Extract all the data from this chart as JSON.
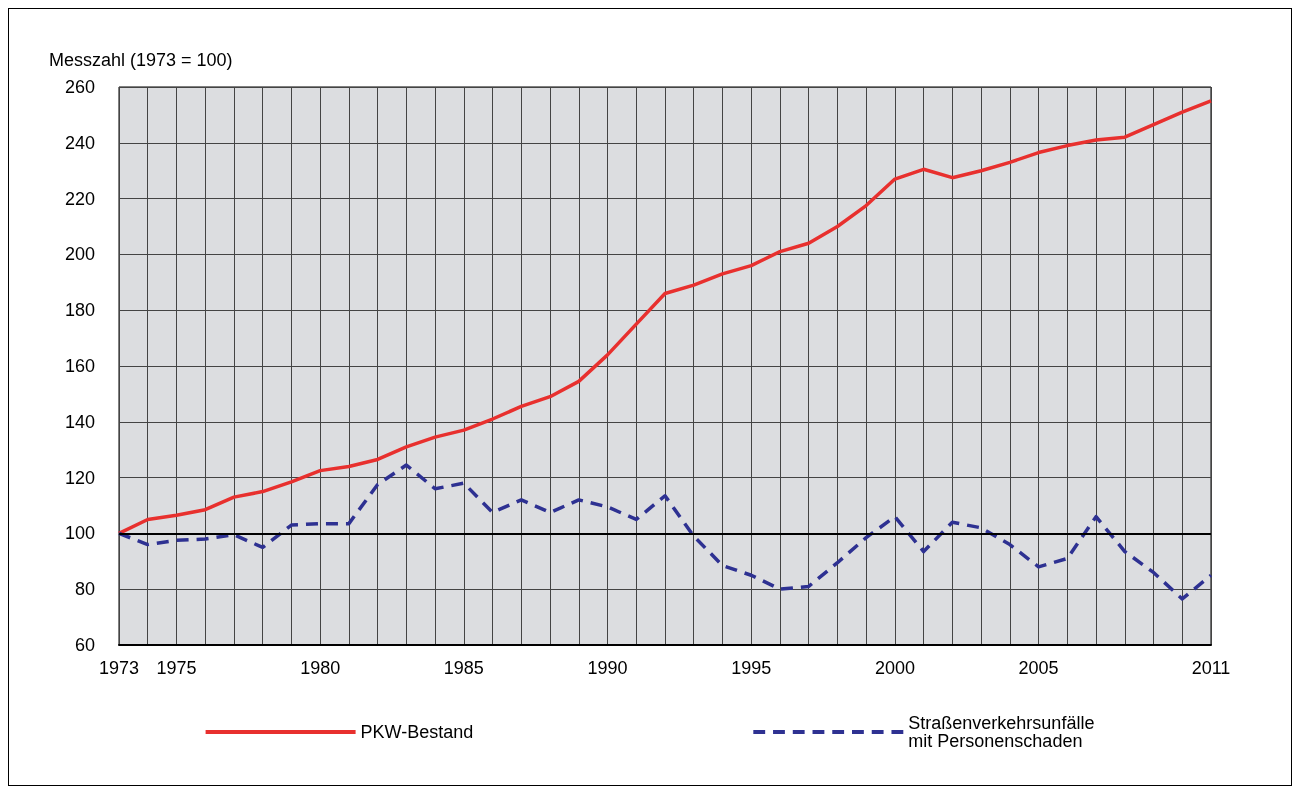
{
  "chart_data": {
    "type": "line",
    "ylabel": "Messzahl (1973 = 100)",
    "x": [
      1973,
      1974,
      1975,
      1976,
      1977,
      1978,
      1979,
      1980,
      1981,
      1982,
      1983,
      1984,
      1985,
      1986,
      1987,
      1988,
      1989,
      1990,
      1991,
      1992,
      1993,
      1994,
      1995,
      1996,
      1997,
      1998,
      1999,
      2000,
      2001,
      2002,
      2003,
      2004,
      2005,
      2006,
      2007,
      2008,
      2009,
      2010,
      2011
    ],
    "series": [
      {
        "name": "PKW-Bestand",
        "color": "#e8302e",
        "line_style": "solid",
        "values": [
          100,
          105,
          106.5,
          108.5,
          113,
          115,
          118.5,
          122.5,
          124,
          126.5,
          131,
          134.5,
          137,
          141,
          145.5,
          149,
          154.5,
          164,
          175,
          186,
          189,
          193,
          196,
          201,
          204,
          210,
          217.5,
          227,
          230.5,
          227.5,
          230,
          233,
          236.5,
          239,
          241,
          242,
          246.5,
          251,
          255
        ]
      },
      {
        "name": "Straßenverkehrsunfälle\nmit Personenschaden",
        "color": "#2e3192",
        "line_style": "dashed",
        "values": [
          100,
          96,
          97.5,
          98,
          99.5,
          95,
          103,
          103.5,
          103.5,
          117.5,
          124.5,
          116,
          118,
          107.5,
          112,
          107.5,
          112,
          109.5,
          105,
          113.5,
          99,
          88.5,
          85,
          80,
          81,
          89.5,
          98.5,
          106,
          93.5,
          104,
          102,
          96,
          88,
          91,
          106,
          93.5,
          86,
          76.5,
          85
        ]
      }
    ],
    "xlim": [
      1973,
      2011
    ],
    "xticks": [
      1973,
      {
        "value": 1974,
        "label": null
      },
      1975,
      {
        "value": 1976,
        "label": null
      },
      {
        "value": 1977,
        "label": null
      },
      {
        "value": 1978,
        "label": null
      },
      {
        "value": 1979,
        "label": null
      },
      1980,
      {
        "value": 1981,
        "label": null
      },
      {
        "value": 1982,
        "label": null
      },
      {
        "value": 1983,
        "label": null
      },
      {
        "value": 1984,
        "label": null
      },
      1985,
      {
        "value": 1986,
        "label": null
      },
      {
        "value": 1987,
        "label": null
      },
      {
        "value": 1988,
        "label": null
      },
      {
        "value": 1989,
        "label": null
      },
      1990,
      {
        "value": 1991,
        "label": null
      },
      {
        "value": 1992,
        "label": null
      },
      {
        "value": 1993,
        "label": null
      },
      {
        "value": 1994,
        "label": null
      },
      1995,
      {
        "value": 1996,
        "label": null
      },
      {
        "value": 1997,
        "label": null
      },
      {
        "value": 1998,
        "label": null
      },
      {
        "value": 1999,
        "label": null
      },
      2000,
      {
        "value": 2001,
        "label": null
      },
      {
        "value": 2002,
        "label": null
      },
      {
        "value": 2003,
        "label": null
      },
      {
        "value": 2004,
        "label": null
      },
      2005,
      {
        "value": 2006,
        "label": null
      },
      {
        "value": 2007,
        "label": null
      },
      {
        "value": 2008,
        "label": null
      },
      {
        "value": 2009,
        "label": null
      },
      {
        "value": 2010,
        "label": null
      },
      2011
    ],
    "ylim": [
      60,
      260
    ],
    "yticks": [
      60,
      80,
      100,
      120,
      140,
      160,
      180,
      200,
      220,
      240,
      260
    ],
    "ref_lines": [
      {
        "axis": "y",
        "value": 100,
        "color": "#000000"
      }
    ],
    "grid": true,
    "legend": "bottom",
    "marker": "none"
  }
}
